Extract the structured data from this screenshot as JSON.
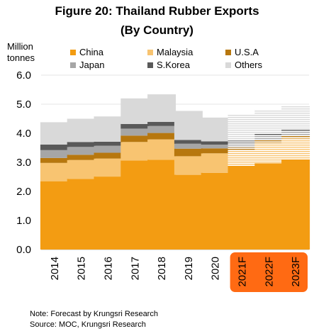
{
  "chart_data": {
    "type": "bar",
    "stacked": true,
    "title": "Figure 20: Thailand Rubber Exports",
    "subtitle": "(By Country)",
    "ylabel_lines": [
      "Million",
      "tonnes"
    ],
    "xlabel": "",
    "ylim": [
      0,
      6
    ],
    "yticks": [
      "0.0",
      "1.0",
      "2.0",
      "3.0",
      "4.0",
      "5.0",
      "6.0"
    ],
    "categories": [
      "2014",
      "2015",
      "2016",
      "2017",
      "2018",
      "2019",
      "2020",
      "2021F",
      "2022F",
      "2023F"
    ],
    "forecast_categories": [
      "2021F",
      "2022F",
      "2023F"
    ],
    "grid": true,
    "legend_position": "top",
    "series": [
      {
        "name": "China",
        "color": "#F39C12",
        "values": [
          2.35,
          2.43,
          2.51,
          3.06,
          3.09,
          2.57,
          2.64,
          2.88,
          2.97,
          3.1
        ]
      },
      {
        "name": "Malaysia",
        "color": "#F8C471",
        "values": [
          0.63,
          0.65,
          0.62,
          0.64,
          0.7,
          0.64,
          0.67,
          0.55,
          0.7,
          0.72
        ]
      },
      {
        "name": "U.S.A",
        "color": "#B7770E",
        "values": [
          0.17,
          0.18,
          0.2,
          0.22,
          0.22,
          0.26,
          0.17,
          0.09,
          0.1,
          0.1
        ]
      },
      {
        "name": "Japan",
        "color": "#A6A6A6",
        "values": [
          0.27,
          0.27,
          0.24,
          0.24,
          0.24,
          0.17,
          0.13,
          0.15,
          0.14,
          0.14
        ]
      },
      {
        "name": "S.Korea",
        "color": "#595959",
        "values": [
          0.19,
          0.17,
          0.14,
          0.16,
          0.14,
          0.13,
          0.11,
          0.08,
          0.08,
          0.08
        ]
      },
      {
        "name": "Others",
        "color": "#D9D9D9",
        "values": [
          0.77,
          0.8,
          0.87,
          0.88,
          0.95,
          1.0,
          0.82,
          0.9,
          0.83,
          0.8
        ]
      }
    ],
    "forecast_highlight_color": "#FF6A13"
  },
  "notes": {
    "line1": "Note: Forecast by Krungsri Research",
    "line2": "Source:  MOC, Krungsri Research"
  }
}
